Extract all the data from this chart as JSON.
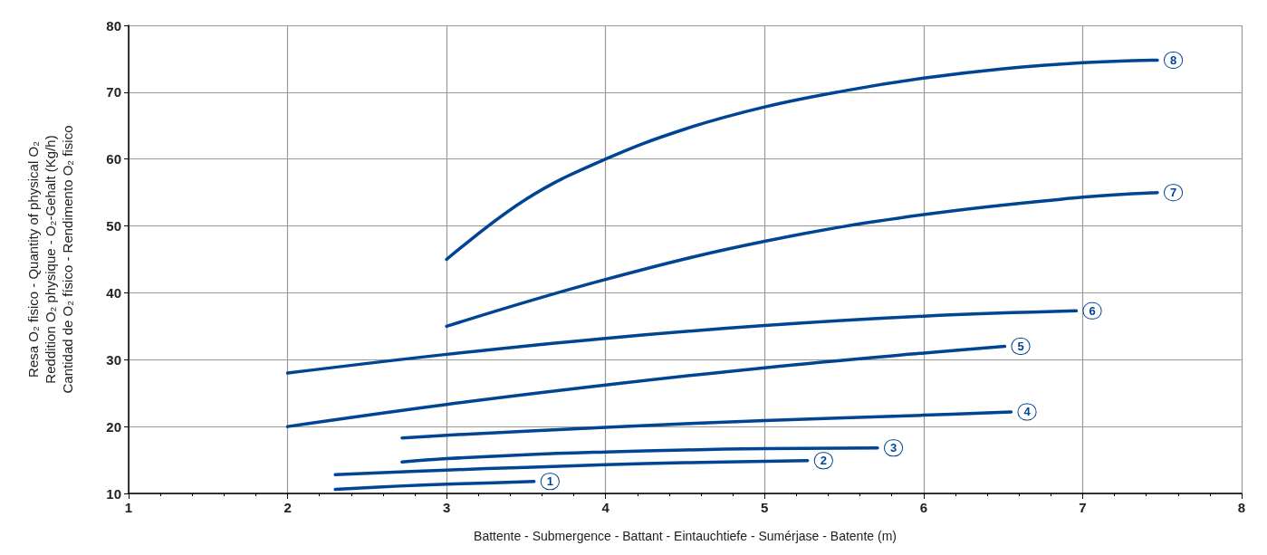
{
  "chart_data": {
    "type": "line",
    "xlabel": "Battente - Submergence - Battant - Eintauchtiefe - Sumérjase - Batente (m)",
    "ylabel": "Resa O₂ fisico - Quantity of physical O₂\nReddition O₂ physique - O₂-Gehalt (Kg/h)\nCantidad de O₂ físico - Rendimento O₂ fisico",
    "xlim": [
      1,
      8
    ],
    "xticks": [
      1,
      2,
      3,
      4,
      5,
      6,
      7,
      8
    ],
    "ylim": [
      10,
      80
    ],
    "yticks": [
      10,
      20,
      30,
      40,
      50,
      60,
      70,
      80
    ],
    "grid": true,
    "legend": false,
    "marker": "none",
    "line_style": "solid",
    "series": [
      {
        "name": "1",
        "color": "#004494",
        "x": [
          2.3,
          2.7,
          3.0,
          3.3,
          3.55
        ],
        "values": [
          10.6,
          11.1,
          11.4,
          11.6,
          11.8
        ]
      },
      {
        "name": "2",
        "color": "#004494",
        "x": [
          2.3,
          3,
          3.5,
          4,
          4.5,
          5.27
        ],
        "values": [
          12.8,
          13.5,
          13.9,
          14.3,
          14.6,
          14.9
        ]
      },
      {
        "name": "3",
        "color": "#004494",
        "x": [
          2.72,
          3,
          3.5,
          4,
          4.5,
          5,
          5.71
        ],
        "values": [
          14.7,
          15.2,
          15.8,
          16.2,
          16.5,
          16.7,
          16.8
        ]
      },
      {
        "name": "4",
        "color": "#004494",
        "x": [
          2.72,
          3,
          4,
          5,
          6,
          6.55
        ],
        "values": [
          18.3,
          18.7,
          19.9,
          20.9,
          21.7,
          22.2
        ]
      },
      {
        "name": "5",
        "color": "#004494",
        "x": [
          2,
          3,
          4,
          5,
          6,
          6.51
        ],
        "values": [
          20,
          23.3,
          26.2,
          28.8,
          31,
          32
        ]
      },
      {
        "name": "6",
        "color": "#004494",
        "x": [
          2,
          3,
          4,
          5,
          6,
          6.96
        ],
        "values": [
          28,
          30.8,
          33.2,
          35.1,
          36.5,
          37.3
        ]
      },
      {
        "name": "7",
        "color": "#004494",
        "x": [
          3,
          4,
          5,
          6,
          7,
          7.47
        ],
        "values": [
          35,
          42,
          47.7,
          51.7,
          54.3,
          55
        ]
      },
      {
        "name": "8",
        "color": "#004494",
        "x": [
          3,
          3.5,
          4,
          4.5,
          5,
          5.5,
          6,
          6.5,
          7,
          7.47
        ],
        "values": [
          45,
          54,
          60,
          64.5,
          67.8,
          70.2,
          72.1,
          73.5,
          74.4,
          74.8
        ]
      }
    ]
  }
}
